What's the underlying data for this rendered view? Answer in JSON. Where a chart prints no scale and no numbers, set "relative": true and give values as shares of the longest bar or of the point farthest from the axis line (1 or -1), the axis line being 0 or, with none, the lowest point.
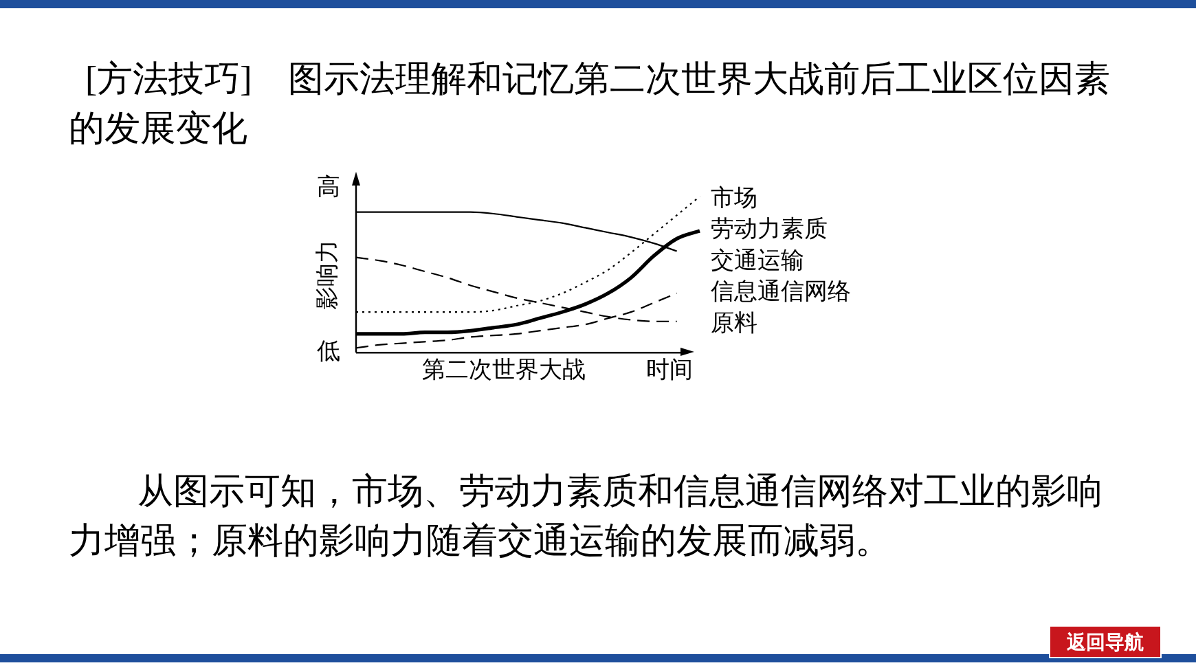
{
  "chart_data": {
    "type": "line",
    "title": "[方法技巧]　图示法理解和记忆第二次世界大战前后工业区位因素的发展变化",
    "xlabel": "时间",
    "ylabel": "影响力",
    "annotations": [
      "高",
      "低",
      "第二次世界大战",
      "从图示可知，市场、劳动力素质和信息通信网络对工业的影响力增强；原料的影响力随着交通运输的发展而减弱。",
      "返回导航"
    ],
    "relative": true,
    "grid": false,
    "legend": false,
    "marker": "none",
    "categories": [
      null,
      null,
      null,
      null,
      null,
      null,
      null,
      null,
      null,
      null,
      null,
      null,
      null,
      null,
      null,
      null
    ],
    "series": [
      {
        "name": "市场",
        "color": "#000000",
        "line_style": "dotted",
        "values": [
          0.26,
          0.26,
          0.26,
          0.26,
          0.26,
          0.26,
          0.27,
          0.3,
          0.33,
          0.38,
          0.45,
          0.53,
          0.64,
          0.76,
          0.88,
          1
        ]
      },
      {
        "name": "劳动力素质",
        "color": "#000000",
        "line_style": "solid",
        "values": [
          0.12,
          0.12,
          0.12,
          0.13,
          0.13,
          0.14,
          0.16,
          0.18,
          0.22,
          0.26,
          0.31,
          0.38,
          0.48,
          0.62,
          0.73,
          0.78
        ]
      },
      {
        "name": "交通运输",
        "color": "#000000",
        "line_style": "solid",
        "values": [
          0.9,
          0.9,
          0.9,
          0.9,
          0.9,
          0.9,
          0.89,
          0.87,
          0.85,
          0.83,
          0.8,
          0.77,
          0.74,
          0.7,
          0.65,
          null
        ]
      },
      {
        "name": "信息通信网络",
        "color": "#000000",
        "line_style": "dashed",
        "values": [
          0.03,
          0.05,
          0.06,
          0.07,
          0.08,
          0.1,
          0.11,
          0.12,
          0.14,
          0.16,
          0.18,
          0.22,
          0.26,
          0.32,
          0.38,
          null
        ]
      },
      {
        "name": "原料",
        "color": "#000000",
        "line_style": "dashed",
        "values": [
          0.61,
          0.59,
          0.56,
          0.52,
          0.48,
          0.43,
          0.39,
          0.35,
          0.32,
          0.29,
          0.26,
          0.23,
          0.21,
          0.2,
          0.2,
          null
        ]
      }
    ]
  }
}
